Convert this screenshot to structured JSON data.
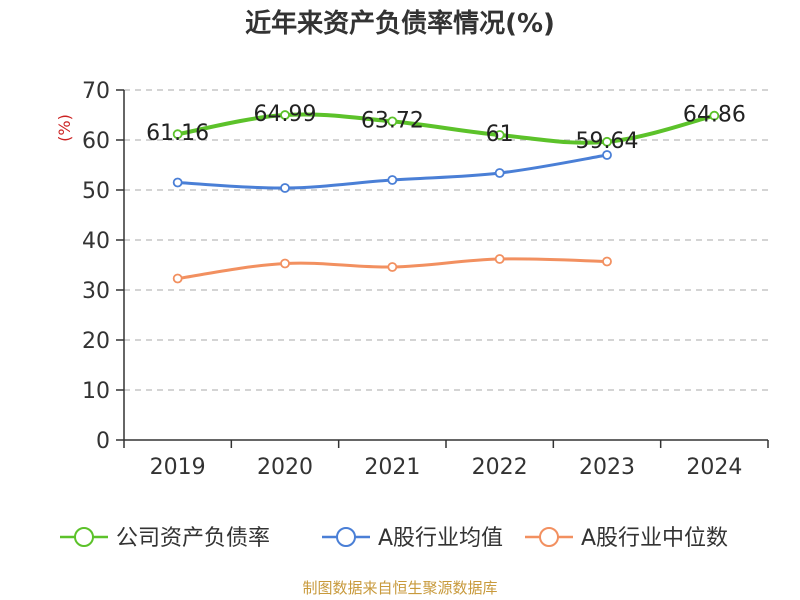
{
  "chart_data": {
    "type": "line",
    "title": "近年来资产负债率情况(%)",
    "unit_label": "(%)",
    "categories": [
      "2019",
      "2020",
      "2021",
      "2022",
      "2023",
      "2024"
    ],
    "ylim": [
      0,
      70
    ],
    "yticks": [
      0,
      10,
      20,
      30,
      40,
      50,
      60,
      70
    ],
    "grid": true,
    "legend_position": "bottom",
    "series": [
      {
        "name": "公司资产负债率",
        "color": "#5cc22a",
        "values": [
          61.16,
          64.99,
          63.72,
          61,
          59.64,
          64.86
        ],
        "labels": [
          "61.16",
          "64.99",
          "63.72",
          "61",
          "59.64",
          "64.86"
        ]
      },
      {
        "name": "A股行业均值",
        "color": "#4a7fd6",
        "values": [
          51.5,
          50.4,
          52.0,
          53.4,
          57.0,
          null
        ]
      },
      {
        "name": "A股行业中位数",
        "color": "#f29060",
        "values": [
          32.3,
          35.3,
          34.6,
          36.2,
          35.7,
          null
        ]
      }
    ]
  },
  "footer": {
    "source_text": "制图数据来自恒生聚源数据库",
    "source_color": "#c89a3c"
  },
  "colors": {
    "unit_color": "#cc2222",
    "axis_color": "#333333",
    "grid_color": "#bbbbbb"
  }
}
